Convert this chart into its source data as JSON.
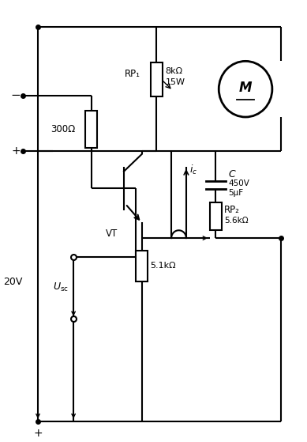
{
  "figure_width": 3.89,
  "figure_height": 5.59,
  "dpi": 100,
  "bg_color": "#ffffff",
  "line_color": "#000000",
  "line_width": 1.5,
  "components": {
    "RP1_label": "RP₁",
    "RP2_label": "RP₂",
    "R300_val": "300Ω",
    "R51_val": "5.1kΩ",
    "RP1_val1": "8kΩ",
    "RP1_val2": "15W",
    "RP2_val": "5.6kΩ",
    "C_label": "C",
    "C_val1": "450V",
    "C_val2": "5μF",
    "VT_label": "VT",
    "M_label": "M",
    "ic_label": "i",
    "U_label": "U",
    "V20_label": "20V",
    "plus_sym": "+",
    "minus_sym": "−"
  }
}
